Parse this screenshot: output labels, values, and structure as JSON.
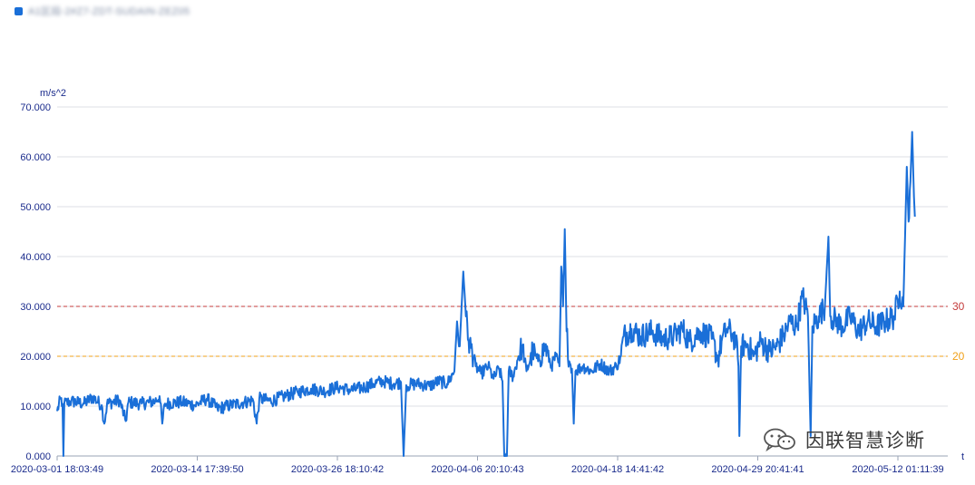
{
  "legend": {
    "series_name": "A1区段-2#Z7-ZDT-SUDAIN-ZEZ05",
    "color": "#1a6fd8"
  },
  "watermark": {
    "text": "因联智慧诊断",
    "icon": "wechat-icon"
  },
  "chart_data": {
    "type": "line",
    "title": "",
    "ylabel": "m/s^2",
    "xlabel": "t",
    "ylim": [
      0,
      70
    ],
    "y_ticks": [
      "0.000",
      "10.000",
      "20.000",
      "30.000",
      "40.000",
      "50.000",
      "60.000",
      "70.000"
    ],
    "x_ticks": [
      "2020-03-01 18:03:49",
      "2020-03-14 17:39:50",
      "2020-03-26 18:10:42",
      "2020-04-06 20:10:43",
      "2020-04-18 14:41:42",
      "2020-04-29 20:41:41",
      "2020-05-12 01:11:39"
    ],
    "grid": true,
    "legend_position": "top-left",
    "mark_lines": [
      {
        "label": "30",
        "value": 30,
        "color": "#c43b3b"
      },
      {
        "label": "20",
        "value": 20,
        "color": "#f0a018"
      }
    ],
    "series": [
      {
        "color": "#1a6fd8",
        "x_index_max": 1000,
        "points": [
          [
            0,
            9
          ],
          [
            4,
            11.5
          ],
          [
            6,
            10.5
          ],
          [
            7,
            0
          ],
          [
            8,
            10.5
          ],
          [
            16,
            11
          ],
          [
            30,
            10.5
          ],
          [
            40,
            11.8
          ],
          [
            50,
            10.2
          ],
          [
            53,
            6.5
          ],
          [
            56,
            10.5
          ],
          [
            70,
            11.2
          ],
          [
            77,
            7
          ],
          [
            80,
            10.8
          ],
          [
            95,
            10.5
          ],
          [
            110,
            11
          ],
          [
            115,
            12
          ],
          [
            118,
            6.5
          ],
          [
            121,
            10.5
          ],
          [
            140,
            10.8
          ],
          [
            155,
            10.2
          ],
          [
            168,
            11.5
          ],
          [
            180,
            9.5
          ],
          [
            195,
            10.2
          ],
          [
            210,
            10.8
          ],
          [
            220,
            11.2
          ],
          [
            224,
            6.5
          ],
          [
            227,
            11.5
          ],
          [
            240,
            11
          ],
          [
            255,
            12
          ],
          [
            270,
            12.8
          ],
          [
            285,
            13.5
          ],
          [
            300,
            13
          ],
          [
            315,
            13.8
          ],
          [
            330,
            13.2
          ],
          [
            345,
            13.8
          ],
          [
            355,
            14.5
          ],
          [
            365,
            15
          ],
          [
            378,
            14.5
          ],
          [
            386,
            14.8
          ],
          [
            389,
            0
          ],
          [
            392,
            14.2
          ],
          [
            405,
            14.5
          ],
          [
            418,
            14
          ],
          [
            428,
            15
          ],
          [
            438,
            14.5
          ],
          [
            446,
            17
          ],
          [
            449,
            27
          ],
          [
            452,
            22
          ],
          [
            456,
            37
          ],
          [
            459,
            28
          ],
          [
            462,
            23
          ],
          [
            466,
            21
          ],
          [
            470,
            18
          ],
          [
            476,
            16.5
          ],
          [
            484,
            18
          ],
          [
            490,
            15.5
          ],
          [
            496,
            17.5
          ],
          [
            500,
            15
          ],
          [
            502,
            0
          ],
          [
            505,
            0
          ],
          [
            507,
            17
          ],
          [
            512,
            16
          ],
          [
            518,
            20
          ],
          [
            522,
            22
          ],
          [
            527,
            17
          ],
          [
            534,
            21
          ],
          [
            540,
            19
          ],
          [
            548,
            22
          ],
          [
            555,
            18
          ],
          [
            560,
            20
          ],
          [
            564,
            18
          ],
          [
            566,
            38
          ],
          [
            568,
            30
          ],
          [
            570,
            45.5
          ],
          [
            572,
            25
          ],
          [
            575,
            19
          ],
          [
            578,
            17.5
          ],
          [
            580,
            6.5
          ],
          [
            582,
            17
          ],
          [
            590,
            18
          ],
          [
            600,
            17
          ],
          [
            610,
            18.5
          ],
          [
            620,
            17
          ],
          [
            628,
            18
          ],
          [
            633,
            20
          ],
          [
            636,
            24
          ],
          [
            645,
            25.5
          ],
          [
            655,
            24
          ],
          [
            668,
            25
          ],
          [
            680,
            23.5
          ],
          [
            692,
            24
          ],
          [
            702,
            25.5
          ],
          [
            710,
            23
          ],
          [
            722,
            25
          ],
          [
            735,
            23.5
          ],
          [
            742,
            19.5
          ],
          [
            746,
            23
          ],
          [
            752,
            25.5
          ],
          [
            758,
            24.5
          ],
          [
            762,
            23
          ],
          [
            765,
            18
          ],
          [
            766,
            4
          ],
          [
            768,
            22
          ],
          [
            775,
            22.5
          ],
          [
            782,
            20
          ],
          [
            790,
            23
          ],
          [
            800,
            21
          ],
          [
            808,
            22
          ],
          [
            815,
            24
          ],
          [
            823,
            27
          ],
          [
            830,
            26
          ],
          [
            837,
            32
          ],
          [
            843,
            28
          ],
          [
            846,
            4
          ],
          [
            848,
            26
          ],
          [
            855,
            28
          ],
          [
            862,
            30
          ],
          [
            866,
            44
          ],
          [
            868,
            28
          ],
          [
            875,
            27
          ],
          [
            882,
            26
          ],
          [
            890,
            28
          ],
          [
            900,
            25
          ],
          [
            910,
            27
          ],
          [
            920,
            26
          ],
          [
            930,
            27
          ],
          [
            940,
            28
          ],
          [
            946,
            33
          ],
          [
            950,
            30
          ],
          [
            954,
            58
          ],
          [
            956,
            47
          ],
          [
            958,
            55
          ],
          [
            960,
            65
          ],
          [
            962,
            52
          ],
          [
            963,
            48
          ]
        ]
      }
    ]
  }
}
